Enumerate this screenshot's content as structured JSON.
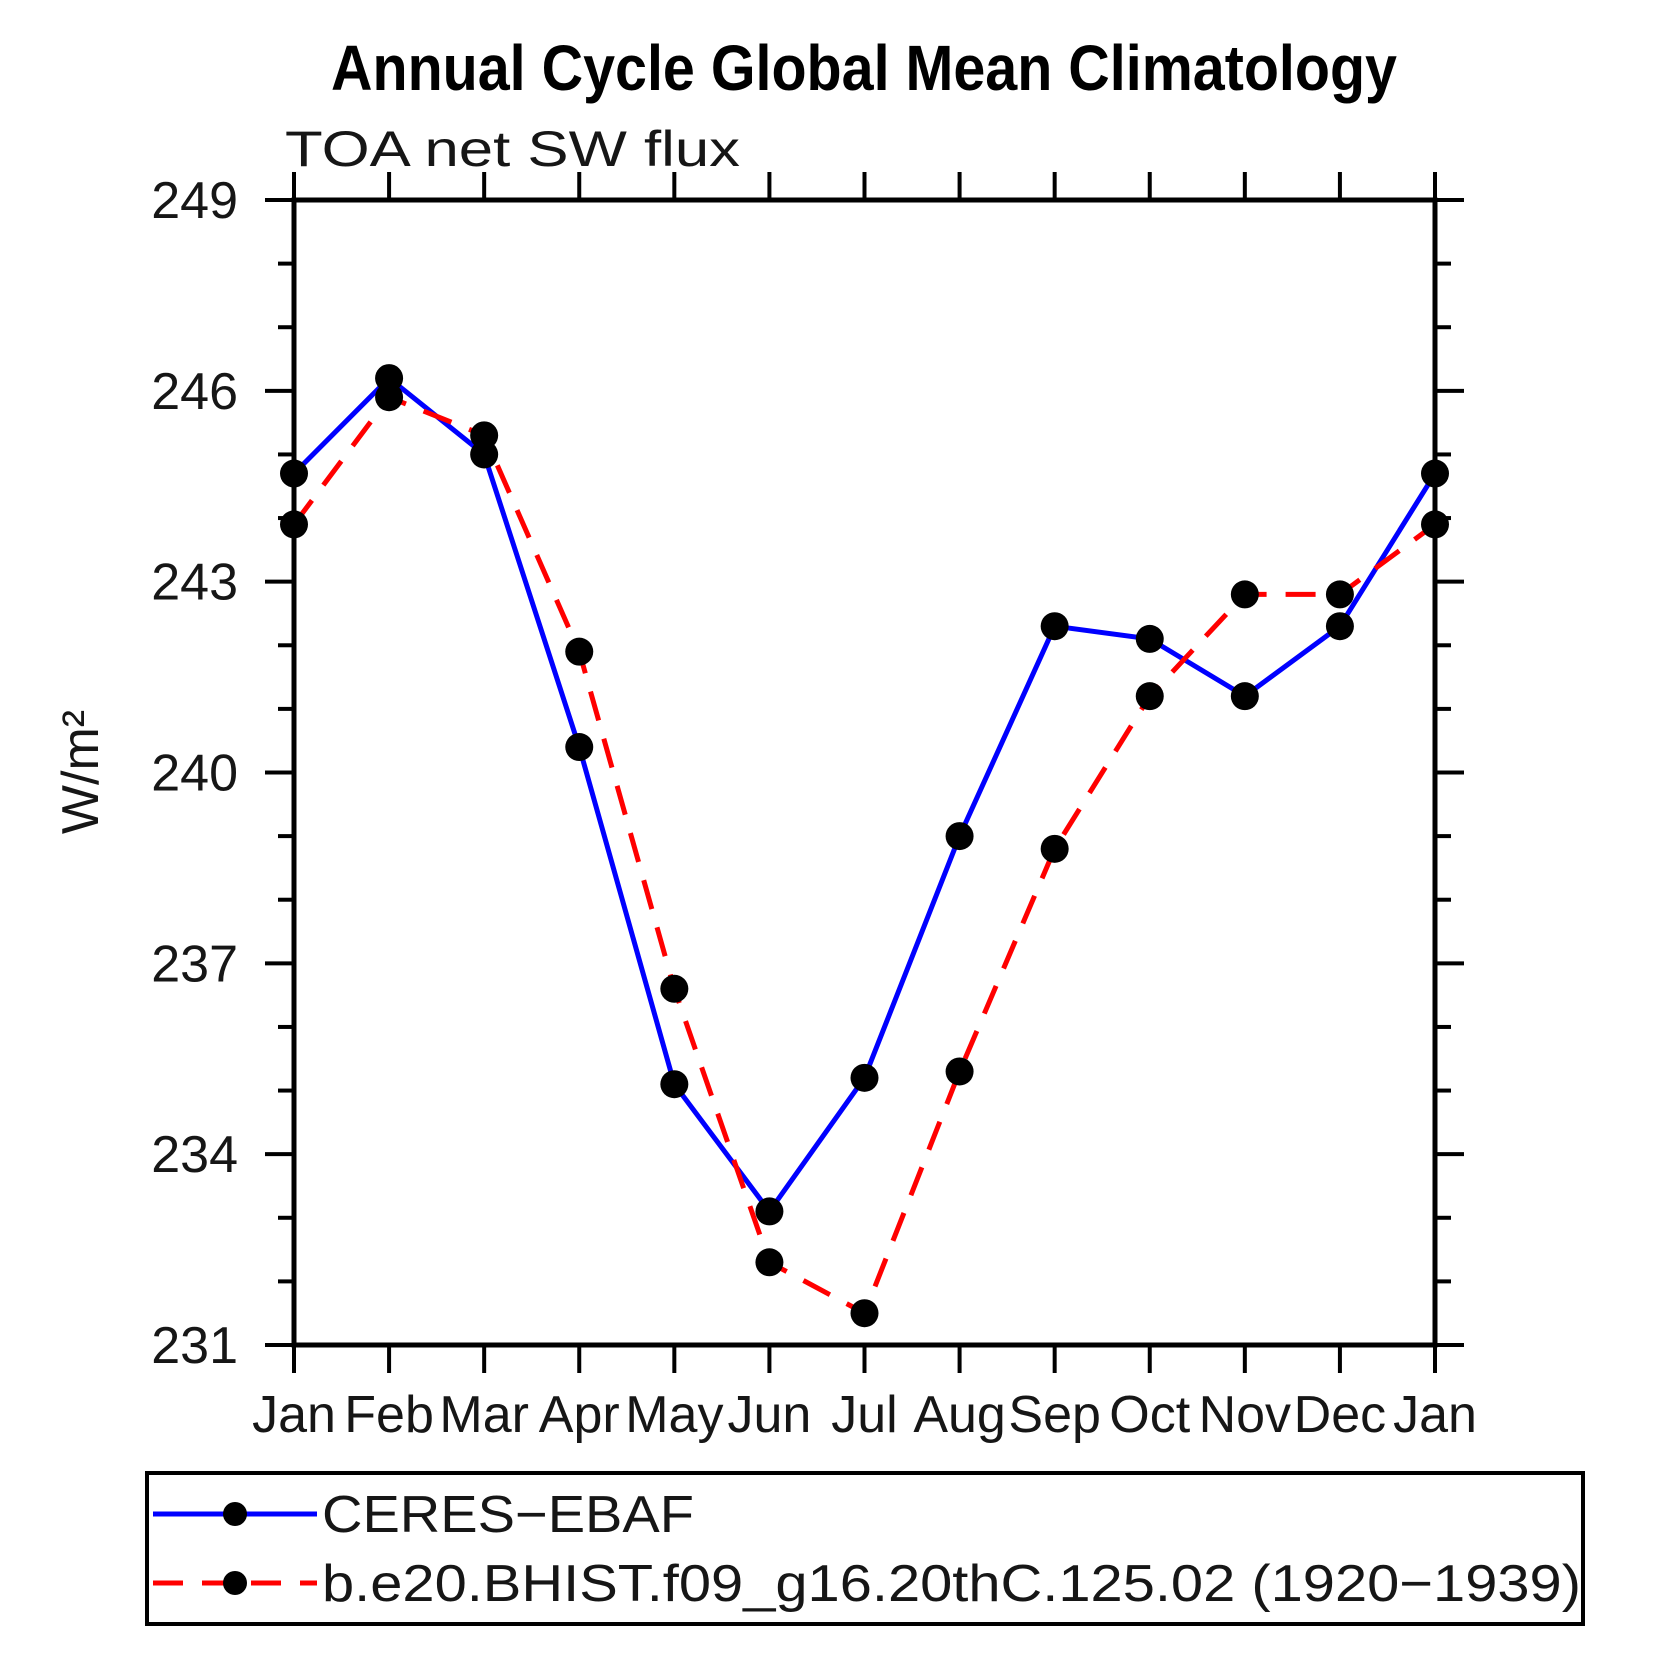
{
  "chart_data": {
    "type": "line",
    "title": "Annual Cycle Global Mean Climatology",
    "subtitle": "TOA net SW flux",
    "ylabel": "W/m²",
    "xlabel": "",
    "categories": [
      "Jan",
      "Feb",
      "Mar",
      "Apr",
      "May",
      "Jun",
      "Jul",
      "Aug",
      "Sep",
      "Oct",
      "Nov",
      "Dec",
      "Jan"
    ],
    "ylim": [
      231,
      249
    ],
    "y_major_ticks": [
      249,
      246,
      243,
      240,
      237,
      234,
      231
    ],
    "y_minor_tick_step": 1,
    "grid": false,
    "legend_position": "bottom-box",
    "series": [
      {
        "name": "CERES−EBAF",
        "color": "#0000ff",
        "line_style": "solid",
        "marker": "filled-circle",
        "marker_color": "#000000",
        "values": [
          244.7,
          246.2,
          245.0,
          240.4,
          235.1,
          233.1,
          235.2,
          239.0,
          242.3,
          242.1,
          241.2,
          242.3,
          244.7
        ]
      },
      {
        "name": "b.e20.BHIST.f09_g16.20thC.125.02 (1920−1939)",
        "color": "#ff0000",
        "line_style": "dashed",
        "marker": "filled-circle",
        "marker_color": "#000000",
        "values": [
          243.9,
          245.9,
          245.3,
          241.9,
          236.6,
          232.3,
          231.5,
          235.3,
          238.8,
          241.2,
          242.8,
          242.8,
          243.9
        ]
      }
    ]
  }
}
